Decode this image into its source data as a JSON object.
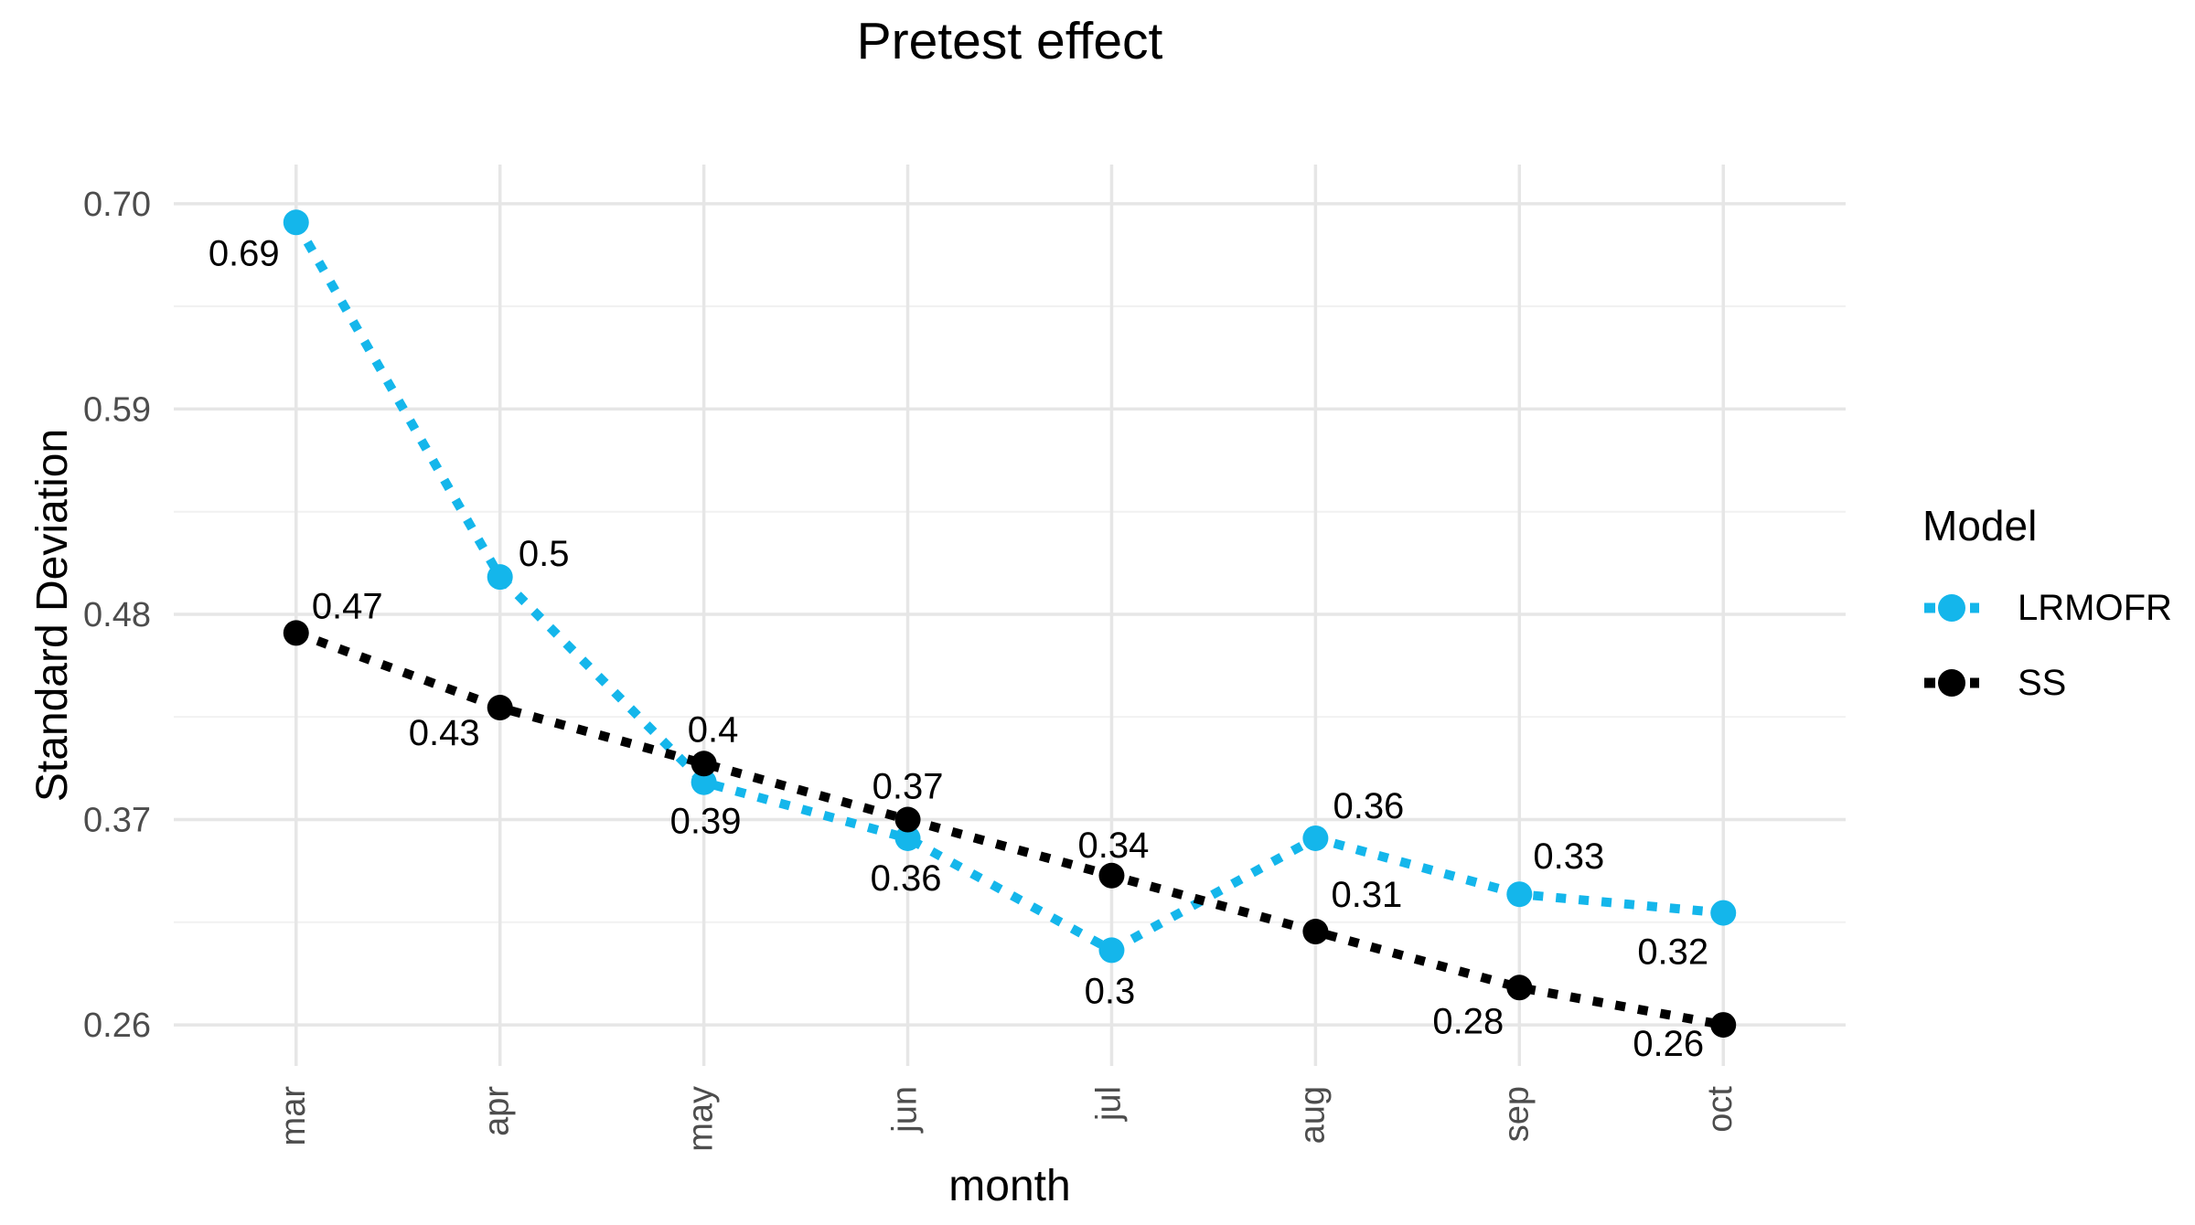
{
  "chart_data": {
    "type": "line",
    "title": "Pretest effect",
    "xlabel": "month",
    "ylabel": "Standard Deviation",
    "categories": [
      "mar",
      "apr",
      "may",
      "jun",
      "jul",
      "aug",
      "sep",
      "oct"
    ],
    "y_ticks": {
      "values": [
        0.26,
        0.37,
        0.48,
        0.59,
        0.7
      ],
      "labels": [
        "0.26",
        "0.37",
        "0.48",
        "0.59",
        "0.70"
      ]
    },
    "ylim": [
      0.238,
      0.721
    ],
    "grid": {
      "major_color": "#E6E6E6",
      "minor_color": "#F1F1F1",
      "vertical_major": true,
      "horizontal_minor": true
    },
    "legend_position": "right",
    "line_style": "dotted",
    "marker": "circle",
    "text_colors": {
      "tick": "#4D4D4D",
      "title": "#000000",
      "point_label": "#000000"
    },
    "series": [
      {
        "name": "LRMOFR",
        "color": "#14B6EB",
        "values": [
          0.69,
          0.5,
          0.39,
          0.36,
          0.3,
          0.36,
          0.33,
          0.32
        ],
        "labels": [
          "0.69",
          "0.5",
          "0.39",
          "0.36",
          "0.3",
          "0.36",
          "0.33",
          "0.32"
        ],
        "label_offsets": [
          [
            -57,
            33
          ],
          [
            48,
            -26
          ],
          [
            2,
            42
          ],
          [
            -2,
            43
          ],
          [
            -2,
            44
          ],
          [
            58,
            -36
          ],
          [
            54,
            -42
          ],
          [
            -55,
            42
          ]
        ]
      },
      {
        "name": "SS",
        "color": "#000000",
        "values": [
          0.47,
          0.43,
          0.4,
          0.37,
          0.34,
          0.31,
          0.28,
          0.26
        ],
        "labels": [
          "0.47",
          "0.43",
          "0.4",
          "0.37",
          "0.34",
          "0.31",
          "0.28",
          "0.26"
        ],
        "label_offsets": [
          [
            56,
            -30
          ],
          [
            -61,
            27
          ],
          [
            10,
            -38
          ],
          [
            0,
            -37
          ],
          [
            2,
            -34
          ],
          [
            56,
            -41
          ],
          [
            -56,
            36
          ],
          [
            -60,
            20
          ]
        ]
      }
    ]
  },
  "legend": {
    "title": "Model",
    "entries": [
      {
        "label": "LRMOFR",
        "color": "#14B6EB"
      },
      {
        "label": "SS",
        "color": "#000000"
      }
    ]
  }
}
